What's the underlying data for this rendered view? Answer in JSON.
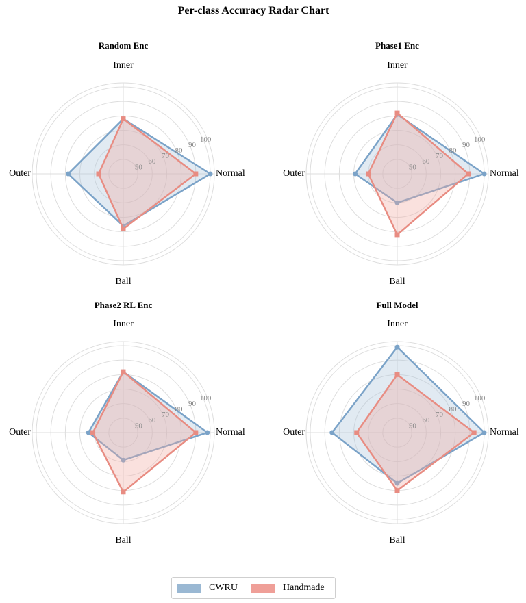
{
  "figure_title": "Per-class Accuracy Radar Chart",
  "colors": {
    "cwru": "#7ba3c8",
    "cwru_fill": "#a9c3db",
    "handmade": "#e88c82",
    "handmade_fill": "#f0a8a1",
    "grid": "#dddddd",
    "tick": "#888888"
  },
  "legend": {
    "placement": "bottom-center",
    "items": [
      {
        "label": "CWRU",
        "color": "#9ab8d3"
      },
      {
        "label": "Handmade",
        "color": "#ef9f98"
      }
    ]
  },
  "chart_data": [
    {
      "type": "radar",
      "title": "Random Enc",
      "axes": [
        "Inner",
        "Normal",
        "Ball",
        "Outer"
      ],
      "rlim": [
        40,
        100
      ],
      "rticks": [
        50,
        60,
        70,
        80,
        90,
        100
      ],
      "grid": true,
      "series": [
        {
          "name": "CWRU",
          "values": [
            78,
            100,
            76,
            78
          ]
        },
        {
          "name": "Handmade",
          "values": [
            78,
            90,
            78,
            57
          ]
        }
      ]
    },
    {
      "type": "radar",
      "title": "Phase1 Enc",
      "axes": [
        "Inner",
        "Normal",
        "Ball",
        "Outer"
      ],
      "rlim": [
        40,
        100
      ],
      "rticks": [
        50,
        60,
        70,
        80,
        90,
        100
      ],
      "grid": true,
      "series": [
        {
          "name": "CWRU",
          "values": [
            81,
            100,
            60,
            69
          ]
        },
        {
          "name": "Handmade",
          "values": [
            82,
            89,
            82,
            60
          ]
        }
      ]
    },
    {
      "type": "radar",
      "title": "Phase2 RL Enc",
      "axes": [
        "Inner",
        "Normal",
        "Ball",
        "Outer"
      ],
      "rlim": [
        40,
        100
      ],
      "rticks": [
        50,
        60,
        70,
        80,
        90,
        100
      ],
      "grid": true,
      "series": [
        {
          "name": "CWRU",
          "values": [
            82,
            98,
            59,
            64
          ]
        },
        {
          "name": "Handmade",
          "values": [
            82,
            90,
            81,
            61
          ]
        }
      ]
    },
    {
      "type": "radar",
      "title": "Full Model",
      "axes": [
        "Inner",
        "Normal",
        "Ball",
        "Outer"
      ],
      "rlim": [
        40,
        100
      ],
      "rticks": [
        50,
        60,
        70,
        80,
        90,
        100
      ],
      "grid": true,
      "series": [
        {
          "name": "CWRU",
          "values": [
            99,
            100,
            75,
            85
          ]
        },
        {
          "name": "Handmade",
          "values": [
            80,
            93,
            80,
            68
          ]
        }
      ]
    }
  ]
}
